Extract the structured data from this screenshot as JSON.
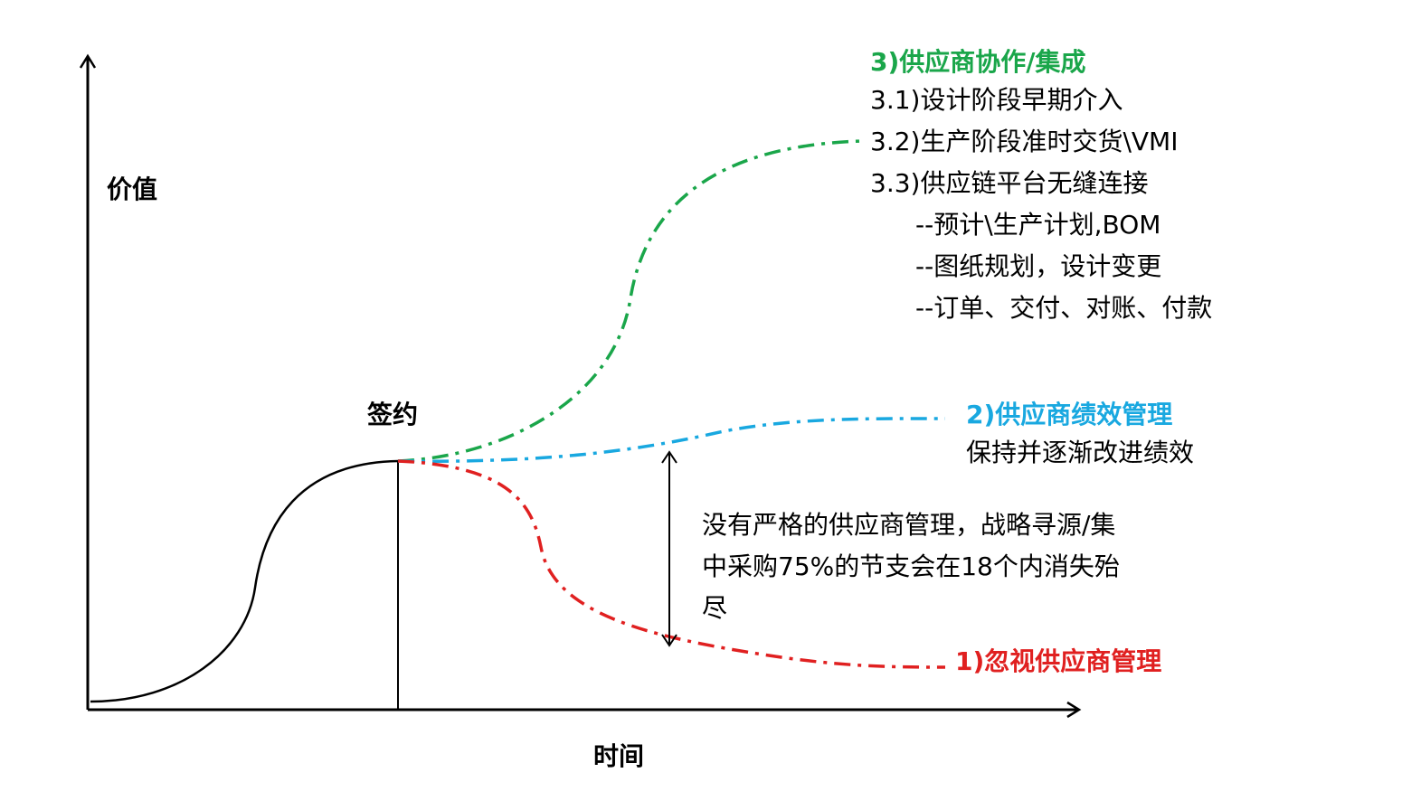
{
  "axes": {
    "y_label": "价值",
    "x_label": "时间"
  },
  "milestone": {
    "label": "签约"
  },
  "colors": {
    "axis": "#000000",
    "green": "#1aa64a",
    "blue": "#19a8e0",
    "red": "#e02020",
    "black": "#000000"
  },
  "branches": {
    "green": {
      "title": "3)供应商协作/集成",
      "items": [
        "3.1)设计阶段早期介入",
        "3.2)生产阶段准时交货\\VMI",
        "3.3)供应链平台无缝连接"
      ],
      "sub_items": [
        "--预计\\生产计划,BOM",
        "--图纸规划，设计变更",
        "--订单、交付、对账、付款"
      ]
    },
    "blue": {
      "title": "2)供应商绩效管理",
      "subtitle": "保持并逐渐改进绩效"
    },
    "red": {
      "title": "1)忽视供应商管理"
    }
  },
  "annotation": {
    "lines": [
      "没有严格的供应商管理，战略寻源/集",
      "中采购75%的节支会在18个内消失殆",
      "尽"
    ]
  }
}
